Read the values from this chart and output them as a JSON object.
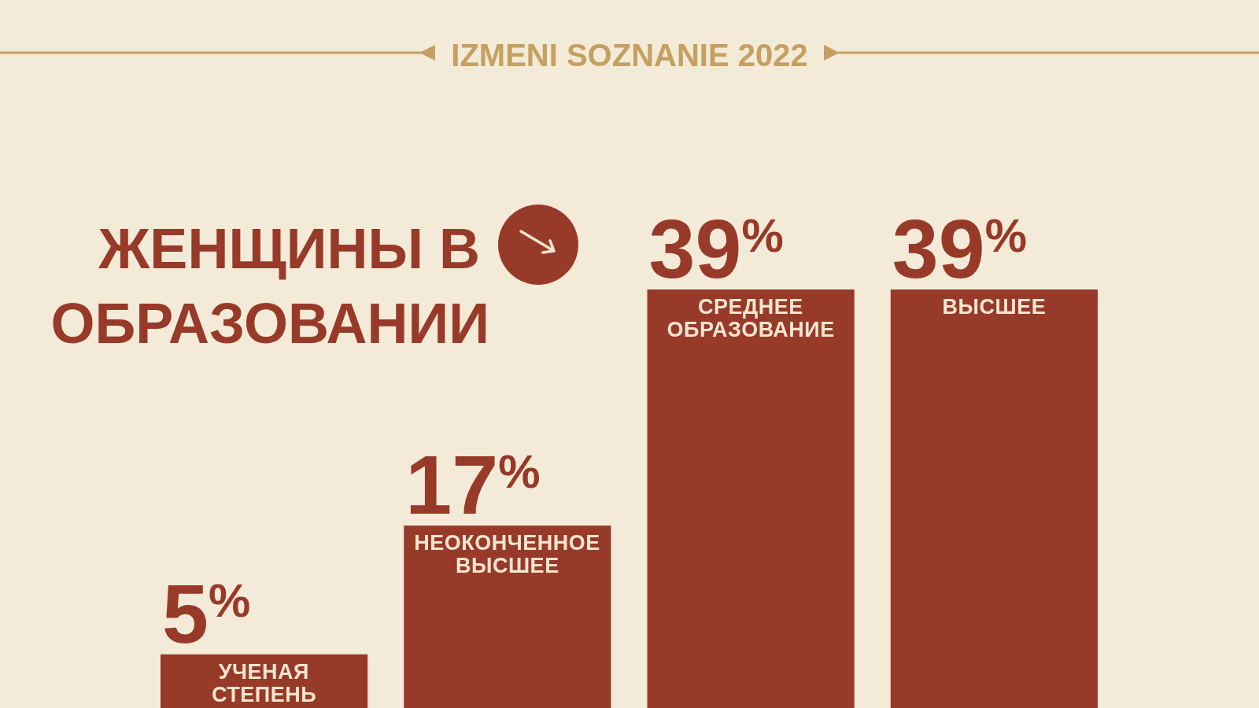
{
  "chart_data": {
    "type": "bar",
    "title": "ЖЕНЩИНЫ В ОБРАЗОВАНИИ",
    "subtitle": "IZMENI SOZNANIE 2022",
    "categories": [
      "УЧЕНАЯ СТЕПЕНЬ",
      "НЕОКОНЧЕННОЕ ВЫСШЕЕ",
      "СРЕДНЕЕ ОБРАЗОВАНИЕ",
      "ВЫСШЕЕ"
    ],
    "values": [
      5,
      17,
      39,
      39
    ],
    "color": "#973a29",
    "value_labels": [
      "5$^{%}$",
      "17$^{%}$",
      "39$^{%}$",
      "39$^{%}$"
    ]
  }
}
